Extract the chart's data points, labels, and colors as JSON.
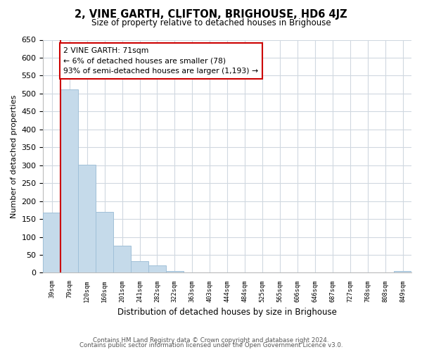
{
  "title": "2, VINE GARTH, CLIFTON, BRIGHOUSE, HD6 4JZ",
  "subtitle": "Size of property relative to detached houses in Brighouse",
  "xlabel": "Distribution of detached houses by size in Brighouse",
  "ylabel": "Number of detached properties",
  "bar_labels": [
    "39sqm",
    "79sqm",
    "120sqm",
    "160sqm",
    "201sqm",
    "241sqm",
    "282sqm",
    "322sqm",
    "363sqm",
    "403sqm",
    "444sqm",
    "484sqm",
    "525sqm",
    "565sqm",
    "606sqm",
    "646sqm",
    "687sqm",
    "727sqm",
    "768sqm",
    "808sqm",
    "849sqm"
  ],
  "bar_values": [
    168,
    512,
    302,
    170,
    76,
    32,
    20,
    5,
    1,
    0,
    0,
    0,
    0,
    0,
    0,
    0,
    0,
    0,
    0,
    0,
    5
  ],
  "bar_color": "#c5daea",
  "bar_edge_color": "#a0c0d8",
  "marker_line_color": "#cc0000",
  "annotation_title": "2 VINE GARTH: 71sqm",
  "annotation_line1": "← 6% of detached houses are smaller (78)",
  "annotation_line2": "93% of semi-detached houses are larger (1,193) →",
  "annotation_box_color": "#ffffff",
  "annotation_box_edge": "#cc0000",
  "ylim": [
    0,
    650
  ],
  "yticks": [
    0,
    50,
    100,
    150,
    200,
    250,
    300,
    350,
    400,
    450,
    500,
    550,
    600,
    650
  ],
  "footer1": "Contains HM Land Registry data © Crown copyright and database right 2024.",
  "footer2": "Contains public sector information licensed under the Open Government Licence v3.0.",
  "bg_color": "#ffffff",
  "grid_color": "#d0d8e0"
}
